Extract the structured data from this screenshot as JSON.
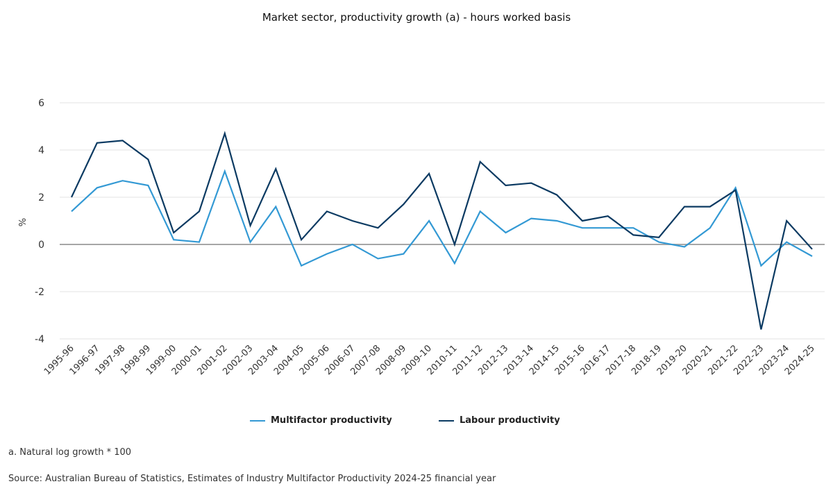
{
  "chart_data": {
    "type": "line",
    "title": "Market sector, productivity growth (a) - hours worked basis",
    "xlabel": "",
    "ylabel": "%",
    "ylim": [
      -4,
      6
    ],
    "yticks": [
      6,
      4,
      2,
      0,
      -2,
      -4
    ],
    "grid": true,
    "legend": "bottom",
    "categories": [
      "1995-96",
      "1996-97",
      "1997-98",
      "1998-99",
      "1999-00",
      "2000-01",
      "2001-02",
      "2002-03",
      "2003-04",
      "2004-05",
      "2005-06",
      "2006-07",
      "2007-08",
      "2008-09",
      "2009-10",
      "2010-11",
      "2011-12",
      "2012-13",
      "2013-14",
      "2014-15",
      "2015-16",
      "2016-17",
      "2017-18",
      "2018-19",
      "2019-20",
      "2020-21",
      "2021-22",
      "2022-23",
      "2023-24",
      "2024-25"
    ],
    "series": [
      {
        "name": "Multifactor productivity",
        "color": "#3399d4",
        "values": [
          1.4,
          2.4,
          2.7,
          2.5,
          0.2,
          0.1,
          3.1,
          0.1,
          1.6,
          -0.9,
          -0.4,
          0.0,
          -0.6,
          -0.4,
          1.0,
          -0.8,
          1.4,
          0.5,
          1.1,
          1.0,
          0.7,
          0.7,
          0.7,
          0.1,
          -0.1,
          0.7,
          2.4,
          -0.9,
          0.1,
          -0.5
        ]
      },
      {
        "name": "Labour productivity",
        "color": "#0b3a62",
        "values": [
          2.0,
          4.3,
          4.4,
          3.6,
          0.5,
          1.4,
          4.7,
          0.8,
          3.2,
          0.2,
          1.4,
          1.0,
          0.7,
          1.7,
          3.0,
          0.0,
          3.5,
          2.5,
          2.6,
          2.1,
          1.0,
          1.2,
          0.4,
          0.3,
          1.6,
          1.6,
          2.3,
          -3.6,
          1.0,
          -0.2
        ]
      }
    ]
  },
  "footnote": "a. Natural log growth * 100",
  "source": "Source: Australian Bureau of Statistics, Estimates of Industry Multifactor Productivity 2024-25 financial year"
}
